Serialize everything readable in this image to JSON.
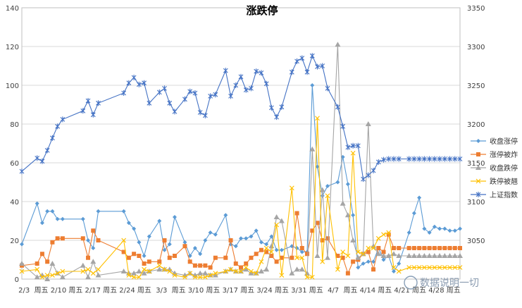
{
  "chart_data": {
    "type": "line",
    "title": "涨跌停",
    "x_ticks": [
      "2/3",
      "周五",
      "2/10",
      "周五",
      "2/17",
      "周五",
      "2/24",
      "周五",
      "3/3",
      "周五",
      "3/10",
      "周五",
      "3/17",
      "周五",
      "3/24",
      "周五",
      "3/31",
      "周五",
      "4/7",
      "周五",
      "4/14",
      "周五",
      "4/21",
      "周五",
      "4/28",
      "周五"
    ],
    "x_range": [
      0,
      86
    ],
    "y_left": {
      "range": [
        0,
        140
      ],
      "ticks": [
        0,
        20,
        40,
        60,
        80,
        100,
        120,
        140
      ]
    },
    "y_right": {
      "range": [
        3000,
        3350
      ],
      "ticks": [
        3050,
        3100,
        3150,
        3200,
        3250,
        3300,
        3350
      ]
    },
    "grid": true,
    "legend_position": "right",
    "series": [
      {
        "name": "收盘涨停",
        "axis": "left",
        "color": "#5b9bd5",
        "marker": "diamond",
        "x": [
          0,
          3,
          4,
          5,
          6,
          7,
          8,
          12,
          13,
          14,
          15,
          20,
          21,
          22,
          23,
          24,
          25,
          27,
          28,
          29,
          30,
          32,
          33,
          34,
          35,
          36,
          37,
          38,
          40,
          41,
          42,
          43,
          44,
          45,
          46,
          47,
          48,
          49,
          50,
          51,
          53,
          54,
          55,
          56,
          57,
          58,
          59,
          60,
          62,
          63,
          64,
          65,
          66,
          67,
          68,
          69,
          70,
          71,
          72,
          73,
          74,
          76,
          77,
          78,
          79,
          80,
          81,
          82,
          83,
          84,
          85,
          86
        ],
        "y": [
          18,
          39,
          29,
          35,
          35,
          31,
          31,
          31,
          20,
          16,
          35,
          35,
          29,
          26,
          19,
          12,
          22,
          30,
          15,
          18,
          32,
          19,
          12,
          16,
          13,
          20,
          24,
          23,
          33,
          18,
          17,
          21,
          21,
          22,
          25,
          19,
          18,
          22,
          15,
          15,
          17,
          16,
          14,
          14,
          100,
          58,
          43,
          48,
          50,
          63,
          49,
          33,
          6,
          8,
          9,
          9,
          16,
          10,
          12,
          4,
          8,
          24,
          34,
          42,
          26,
          24,
          27,
          26,
          26,
          25,
          25,
          26
        ]
      },
      {
        "name": "涨停被炸",
        "axis": "left",
        "color": "#ed7d31",
        "marker": "square",
        "x": [
          0,
          3,
          4,
          5,
          6,
          7,
          8,
          12,
          13,
          14,
          15,
          20,
          21,
          22,
          23,
          24,
          25,
          27,
          28,
          29,
          30,
          32,
          33,
          34,
          35,
          36,
          37,
          38,
          40,
          41,
          42,
          43,
          44,
          45,
          46,
          47,
          48,
          49,
          50,
          51,
          53,
          54,
          55,
          56,
          57,
          58,
          59,
          60,
          62,
          63,
          64,
          65,
          66,
          67,
          68,
          69,
          70,
          71,
          72,
          73,
          74,
          76,
          77,
          78,
          79,
          80,
          81,
          82,
          83,
          84,
          85,
          86
        ],
        "y": [
          7,
          8,
          13,
          9,
          19,
          21,
          21,
          21,
          11,
          25,
          20,
          14,
          11,
          13,
          12,
          8,
          9,
          9,
          20,
          11,
          12,
          17,
          9,
          7,
          7,
          7,
          6,
          11,
          11,
          20,
          8,
          6,
          8,
          11,
          13,
          15,
          14,
          12,
          9,
          11,
          11,
          34,
          16,
          13,
          25,
          29,
          20,
          21,
          12,
          11,
          3,
          9,
          10,
          13,
          14,
          5,
          16,
          14,
          23,
          16,
          16,
          16,
          16,
          16,
          16,
          16,
          16,
          16,
          16,
          16,
          16,
          16
        ]
      },
      {
        "name": "收盘跌停",
        "axis": "left",
        "color": "#a5a5a5",
        "marker": "triangle",
        "x": [
          0,
          3,
          4,
          5,
          6,
          7,
          8,
          12,
          13,
          14,
          15,
          20,
          21,
          22,
          23,
          24,
          25,
          27,
          28,
          29,
          30,
          32,
          33,
          34,
          35,
          36,
          37,
          38,
          40,
          41,
          42,
          43,
          44,
          45,
          46,
          47,
          48,
          49,
          50,
          51,
          53,
          54,
          55,
          56,
          57,
          58,
          59,
          60,
          62,
          63,
          64,
          65,
          66,
          67,
          68,
          69,
          70,
          71,
          72,
          73,
          74,
          76,
          77,
          78,
          79,
          80,
          81,
          82,
          83,
          84,
          85,
          86
        ],
        "y": [
          8,
          1,
          2,
          0,
          8,
          3,
          1,
          7,
          1,
          9,
          2,
          4,
          3,
          3,
          4,
          3,
          4,
          5,
          5,
          5,
          3,
          2,
          3,
          2,
          3,
          3,
          2,
          2,
          4,
          5,
          4,
          4,
          5,
          3,
          3,
          4,
          5,
          17,
          32,
          30,
          3,
          5,
          5,
          3,
          67,
          12,
          46,
          11,
          121,
          39,
          33,
          20,
          11,
          13,
          80,
          17,
          13,
          12,
          12,
          13,
          12,
          12,
          12,
          12,
          12,
          12,
          12,
          12,
          12,
          12,
          12,
          12
        ]
      },
      {
        "name": "跌停被翘",
        "axis": "left",
        "color": "#ffc000",
        "marker": "x",
        "x": [
          0,
          3,
          4,
          5,
          6,
          7,
          8,
          12,
          13,
          14,
          15,
          20,
          21,
          22,
          23,
          24,
          25,
          27,
          28,
          29,
          30,
          32,
          33,
          34,
          35,
          36,
          37,
          38,
          40,
          41,
          42,
          43,
          44,
          45,
          46,
          47,
          48,
          49,
          50,
          51,
          53,
          54,
          55,
          56,
          57,
          58,
          59,
          60,
          62,
          63,
          64,
          65,
          66,
          67,
          68,
          69,
          70,
          71,
          72,
          73,
          74,
          76,
          77,
          78,
          79,
          80,
          81,
          82,
          83,
          84,
          85,
          86
        ],
        "y": [
          4,
          5,
          1,
          2,
          2,
          3,
          4,
          4,
          5,
          3,
          5,
          20,
          2,
          1,
          1,
          5,
          4,
          7,
          5,
          4,
          2,
          1,
          3,
          1,
          1,
          1,
          2,
          3,
          4,
          5,
          4,
          4,
          6,
          4,
          3,
          9,
          16,
          14,
          28,
          2,
          47,
          11,
          11,
          1,
          1,
          83,
          9,
          43,
          5,
          14,
          12,
          65,
          14,
          13,
          16,
          16,
          21,
          23,
          24,
          6,
          4,
          6,
          6,
          6,
          6,
          6,
          6,
          6,
          6,
          6,
          6,
          6
        ]
      },
      {
        "name": "上证指数",
        "axis": "right",
        "color": "#4472c4",
        "marker": "star",
        "x": [
          0,
          3,
          4,
          5,
          6,
          7,
          8,
          12,
          13,
          14,
          15,
          20,
          21,
          22,
          23,
          24,
          25,
          27,
          28,
          29,
          30,
          32,
          33,
          34,
          35,
          36,
          37,
          38,
          40,
          41,
          42,
          43,
          44,
          45,
          46,
          47,
          48,
          49,
          50,
          51,
          53,
          54,
          55,
          56,
          57,
          58,
          59,
          60,
          62,
          63,
          64,
          65,
          66,
          67,
          68,
          69,
          70,
          71,
          72,
          73,
          74,
          76,
          77,
          78,
          79,
          80,
          81,
          82,
          83,
          84,
          85,
          86
        ],
        "y": [
          3139,
          3156,
          3152,
          3166,
          3182,
          3197,
          3206,
          3217,
          3230,
          3212,
          3227,
          3240,
          3253,
          3260,
          3251,
          3253,
          3227,
          3241,
          3246,
          3227,
          3216,
          3232,
          3242,
          3240,
          3215,
          3211,
          3236,
          3238,
          3269,
          3236,
          3250,
          3261,
          3244,
          3246,
          3268,
          3266,
          3252,
          3221,
          3209,
          3222,
          3267,
          3281,
          3285,
          3267,
          3288,
          3274,
          3275,
          3246,
          3222,
          3197,
          3170,
          3172,
          3172,
          3129,
          3134,
          3140,
          3151,
          3154,
          3155,
          3155,
          3155,
          3155,
          3155,
          3155,
          3155,
          3155,
          3155,
          3155,
          3155,
          3155,
          3155,
          3155
        ]
      }
    ]
  },
  "watermark_text": "数据说明一切"
}
